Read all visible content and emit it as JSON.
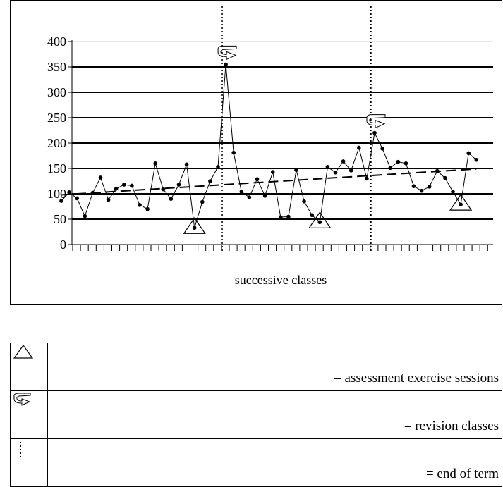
{
  "chart_data": {
    "type": "line",
    "xlabel": "successive classes",
    "ylim": [
      0,
      400
    ],
    "yticks": [
      "0",
      "50",
      "100",
      "150",
      "200",
      "250",
      "300",
      "350",
      "400"
    ],
    "grid": true,
    "values": [
      86,
      103,
      91,
      56,
      102,
      132,
      88,
      110,
      118,
      116,
      78,
      70,
      160,
      109,
      90,
      118,
      158,
      33,
      84,
      125,
      153,
      355,
      181,
      104,
      93,
      129,
      96,
      143,
      54,
      55,
      147,
      85,
      58,
      44,
      153,
      142,
      164,
      146,
      191,
      130,
      220,
      189,
      151,
      163,
      160,
      115,
      106,
      114,
      145,
      131,
      104,
      79,
      180,
      167
    ],
    "trendline": {
      "style": "dashed",
      "start": 98,
      "end": 149
    },
    "end_of_term_after_class": [
      20,
      39
    ],
    "revision_classes": [
      21,
      40
    ],
    "assessment_classes": [
      17,
      33,
      51
    ]
  },
  "legend": {
    "items": [
      {
        "symbol": "triangle-icon",
        "label": "= assessment exercise sessions"
      },
      {
        "symbol": "revision-arrow-icon",
        "label": "= revision classes"
      },
      {
        "symbol": "dotted-line-icon",
        "label": "= end of term"
      }
    ]
  }
}
